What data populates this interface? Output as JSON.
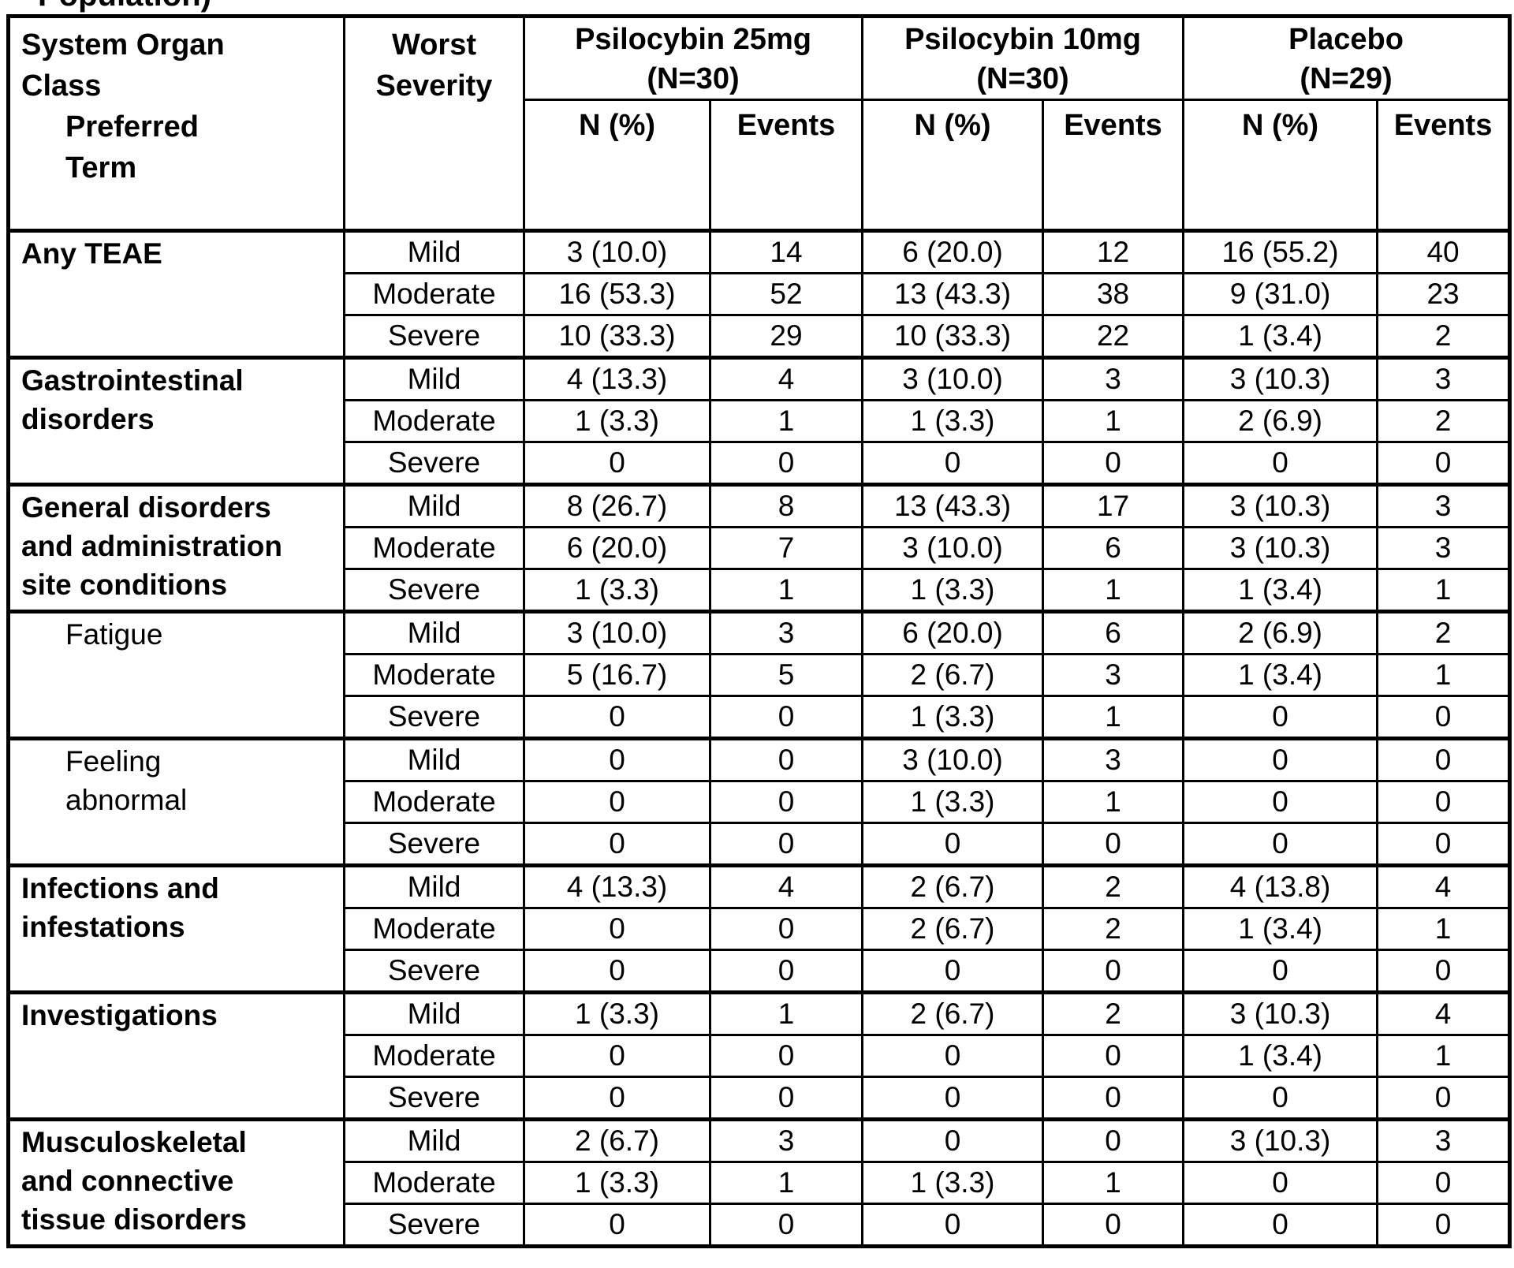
{
  "page": {
    "clipped_caption": "Population)"
  },
  "table": {
    "header": {
      "soc": "System Organ Class",
      "preferred_term": "Preferred Term",
      "severity": "Worst Severity",
      "groups": [
        {
          "label": "Psilocybin 25mg",
          "n": "(N=30)"
        },
        {
          "label": "Psilocybin 10mg",
          "n": "(N=30)"
        },
        {
          "label": "Placebo",
          "n": "(N=29)"
        }
      ],
      "subheaders": [
        "N (%)",
        "Events"
      ]
    },
    "severities": [
      "Mild",
      "Moderate",
      "Severe"
    ],
    "sections": [
      {
        "name": "Any TEAE",
        "bold": true,
        "indent": false,
        "rows": [
          [
            "3 (10.0)",
            "14",
            "6 (20.0)",
            "12",
            "16 (55.2)",
            "40"
          ],
          [
            "16 (53.3)",
            "52",
            "13 (43.3)",
            "38",
            "9 (31.0)",
            "23"
          ],
          [
            "10 (33.3)",
            "29",
            "10 (33.3)",
            "22",
            "1 (3.4)",
            "2"
          ]
        ]
      },
      {
        "name": "Gastrointestinal disorders",
        "bold": true,
        "indent": false,
        "rows": [
          [
            "4 (13.3)",
            "4",
            "3 (10.0)",
            "3",
            "3 (10.3)",
            "3"
          ],
          [
            "1 (3.3)",
            "1",
            "1 (3.3)",
            "1",
            "2 (6.9)",
            "2"
          ],
          [
            "0",
            "0",
            "0",
            "0",
            "0",
            "0"
          ]
        ]
      },
      {
        "name": "General disorders and administration site conditions",
        "bold": true,
        "indent": false,
        "rows": [
          [
            "8 (26.7)",
            "8",
            "13 (43.3)",
            "17",
            "3 (10.3)",
            "3"
          ],
          [
            "6 (20.0)",
            "7",
            "3 (10.0)",
            "6",
            "3 (10.3)",
            "3"
          ],
          [
            "1 (3.3)",
            "1",
            "1 (3.3)",
            "1",
            "1 (3.4)",
            "1"
          ]
        ]
      },
      {
        "name": "Fatigue",
        "bold": false,
        "indent": true,
        "rows": [
          [
            "3 (10.0)",
            "3",
            "6 (20.0)",
            "6",
            "2 (6.9)",
            "2"
          ],
          [
            "5 (16.7)",
            "5",
            "2 (6.7)",
            "3",
            "1 (3.4)",
            "1"
          ],
          [
            "0",
            "0",
            "1 (3.3)",
            "1",
            "0",
            "0"
          ]
        ]
      },
      {
        "name": "Feeling abnormal",
        "bold": false,
        "indent": true,
        "rows": [
          [
            "0",
            "0",
            "3 (10.0)",
            "3",
            "0",
            "0"
          ],
          [
            "0",
            "0",
            "1 (3.3)",
            "1",
            "0",
            "0"
          ],
          [
            "0",
            "0",
            "0",
            "0",
            "0",
            "0"
          ]
        ]
      },
      {
        "name": "Infections and infestations",
        "bold": true,
        "indent": false,
        "rows": [
          [
            "4 (13.3)",
            "4",
            "2 (6.7)",
            "2",
            "4 (13.8)",
            "4"
          ],
          [
            "0",
            "0",
            "2 (6.7)",
            "2",
            "1 (3.4)",
            "1"
          ],
          [
            "0",
            "0",
            "0",
            "0",
            "0",
            "0"
          ]
        ]
      },
      {
        "name": "Investigations",
        "bold": true,
        "indent": false,
        "rows": [
          [
            "1 (3.3)",
            "1",
            "2 (6.7)",
            "2",
            "3 (10.3)",
            "4"
          ],
          [
            "0",
            "0",
            "0",
            "0",
            "1 (3.4)",
            "1"
          ],
          [
            "0",
            "0",
            "0",
            "0",
            "0",
            "0"
          ]
        ]
      },
      {
        "name": "Musculoskeletal and connective tissue disorders",
        "bold": true,
        "indent": false,
        "rows": [
          [
            "2 (6.7)",
            "3",
            "0",
            "0",
            "3 (10.3)",
            "3"
          ],
          [
            "1 (3.3)",
            "1",
            "1 (3.3)",
            "1",
            "0",
            "0"
          ],
          [
            "0",
            "0",
            "0",
            "0",
            "0",
            "0"
          ]
        ]
      }
    ]
  }
}
